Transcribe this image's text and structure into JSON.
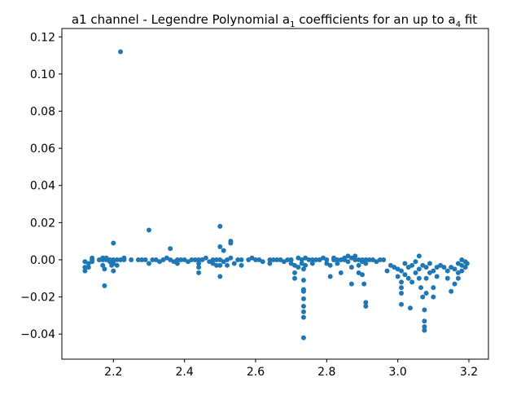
{
  "chart_data": {
    "type": "scatter",
    "title": {
      "prefix": "a1 channel - Legendre Polynomial a",
      "sub1": "1",
      "middle": " coefficients for an up to a",
      "sub2": "4",
      "suffix": " fit"
    },
    "xlabel": "",
    "ylabel": "",
    "xlim": [
      2.055,
      3.255
    ],
    "ylim": [
      -0.0535,
      0.1245
    ],
    "xticks": [
      2.2,
      2.4,
      2.6,
      2.8,
      3.0,
      3.2
    ],
    "xtick_labels": [
      "2.2",
      "2.4",
      "2.6",
      "2.8",
      "3.0",
      "3.2"
    ],
    "yticks": [
      -0.04,
      -0.02,
      0.0,
      0.02,
      0.04,
      0.06,
      0.08,
      0.1,
      0.12
    ],
    "ytick_labels": [
      "−0.04",
      "−0.02",
      "0.00",
      "0.02",
      "0.04",
      "0.06",
      "0.08",
      "0.10",
      "0.12"
    ],
    "grid": false,
    "marker_color": "#1f77b4",
    "series": [
      {
        "points": [
          [
            2.12,
            -0.001
          ],
          [
            2.12,
            -0.004
          ],
          [
            2.12,
            -0.006
          ],
          [
            2.13,
            -0.002
          ],
          [
            2.13,
            -0.004
          ],
          [
            2.14,
            0.0
          ],
          [
            2.14,
            0.001
          ],
          [
            2.14,
            -0.001
          ],
          [
            2.16,
            0.0
          ],
          [
            2.17,
            0.0
          ],
          [
            2.17,
            0.001
          ],
          [
            2.17,
            -0.003
          ],
          [
            2.175,
            -0.005
          ],
          [
            2.175,
            -0.014
          ],
          [
            2.18,
            0.0
          ],
          [
            2.18,
            0.001
          ],
          [
            2.19,
            0.0
          ],
          [
            2.19,
            -0.001
          ],
          [
            2.195,
            -0.003
          ],
          [
            2.2,
            0.0
          ],
          [
            2.2,
            0.009
          ],
          [
            2.2,
            -0.002
          ],
          [
            2.2,
            -0.006
          ],
          [
            2.21,
            0.0
          ],
          [
            2.21,
            -0.003
          ],
          [
            2.22,
            0.112
          ],
          [
            2.22,
            0.0
          ],
          [
            2.23,
            0.0
          ],
          [
            2.23,
            0.001
          ],
          [
            2.25,
            0.0
          ],
          [
            2.27,
            0.0
          ],
          [
            2.28,
            0.0
          ],
          [
            2.29,
            0.0
          ],
          [
            2.3,
            0.016
          ],
          [
            2.3,
            -0.002
          ],
          [
            2.31,
            0.0
          ],
          [
            2.32,
            0.0
          ],
          [
            2.33,
            -0.001
          ],
          [
            2.34,
            0.0
          ],
          [
            2.35,
            0.001
          ],
          [
            2.36,
            0.006
          ],
          [
            2.36,
            0.0
          ],
          [
            2.37,
            -0.001
          ],
          [
            2.38,
            0.0
          ],
          [
            2.38,
            -0.002
          ],
          [
            2.39,
            0.0
          ],
          [
            2.4,
            0.0
          ],
          [
            2.41,
            -0.001
          ],
          [
            2.42,
            0.0
          ],
          [
            2.43,
            0.0
          ],
          [
            2.44,
            0.0
          ],
          [
            2.44,
            -0.002
          ],
          [
            2.44,
            -0.004
          ],
          [
            2.44,
            -0.007
          ],
          [
            2.45,
            0.0
          ],
          [
            2.46,
            0.001
          ],
          [
            2.47,
            -0.001
          ],
          [
            2.48,
            0.0
          ],
          [
            2.48,
            -0.002
          ],
          [
            2.49,
            0.0
          ],
          [
            2.49,
            -0.003
          ],
          [
            2.5,
            0.018
          ],
          [
            2.5,
            0.007
          ],
          [
            2.5,
            0.0
          ],
          [
            2.5,
            -0.003
          ],
          [
            2.5,
            -0.009
          ],
          [
            2.51,
            0.005
          ],
          [
            2.51,
            -0.001
          ],
          [
            2.52,
            0.0
          ],
          [
            2.52,
            -0.003
          ],
          [
            2.53,
            0.009
          ],
          [
            2.53,
            0.01
          ],
          [
            2.53,
            0.001
          ],
          [
            2.54,
            -0.002
          ],
          [
            2.55,
            0.0
          ],
          [
            2.56,
            0.0
          ],
          [
            2.56,
            -0.003
          ],
          [
            2.58,
            0.0
          ],
          [
            2.59,
            0.001
          ],
          [
            2.6,
            0.0
          ],
          [
            2.61,
            0.0
          ],
          [
            2.62,
            -0.001
          ],
          [
            2.64,
            0.0
          ],
          [
            2.64,
            -0.002
          ],
          [
            2.65,
            0.0
          ],
          [
            2.66,
            0.0
          ],
          [
            2.67,
            0.0
          ],
          [
            2.68,
            -0.001
          ],
          [
            2.69,
            0.0
          ],
          [
            2.7,
            0.0
          ],
          [
            2.7,
            -0.002
          ],
          [
            2.71,
            -0.003
          ],
          [
            2.71,
            -0.007
          ],
          [
            2.71,
            -0.01
          ],
          [
            2.72,
            0.001
          ],
          [
            2.72,
            -0.004
          ],
          [
            2.73,
            0.0
          ],
          [
            2.73,
            -0.002
          ],
          [
            2.735,
            -0.005
          ],
          [
            2.735,
            -0.011
          ],
          [
            2.735,
            -0.016
          ],
          [
            2.735,
            -0.017
          ],
          [
            2.735,
            -0.021
          ],
          [
            2.735,
            -0.025
          ],
          [
            2.735,
            -0.028
          ],
          [
            2.735,
            -0.031
          ],
          [
            2.735,
            -0.042
          ],
          [
            2.74,
            0.001
          ],
          [
            2.74,
            -0.003
          ],
          [
            2.75,
            0.0
          ],
          [
            2.76,
            0.0
          ],
          [
            2.76,
            -0.002
          ],
          [
            2.77,
            0.0
          ],
          [
            2.78,
            0.0
          ],
          [
            2.79,
            0.001
          ],
          [
            2.8,
            0.0
          ],
          [
            2.8,
            -0.002
          ],
          [
            2.81,
            -0.003
          ],
          [
            2.81,
            -0.009
          ],
          [
            2.82,
            0.001
          ],
          [
            2.82,
            0.0
          ],
          [
            2.83,
            0.0
          ],
          [
            2.83,
            -0.002
          ],
          [
            2.84,
            0.0
          ],
          [
            2.84,
            -0.007
          ],
          [
            2.85,
            0.001
          ],
          [
            2.85,
            0.0
          ],
          [
            2.86,
            0.002
          ],
          [
            2.86,
            -0.001
          ],
          [
            2.87,
            0.001
          ],
          [
            2.87,
            -0.004
          ],
          [
            2.87,
            -0.013
          ],
          [
            2.88,
            0.0
          ],
          [
            2.88,
            0.002
          ],
          [
            2.89,
            0.0
          ],
          [
            2.89,
            -0.003
          ],
          [
            2.89,
            -0.007
          ],
          [
            2.9,
            0.0
          ],
          [
            2.9,
            -0.001
          ],
          [
            2.9,
            -0.008
          ],
          [
            2.905,
            -0.013
          ],
          [
            2.91,
            0.0
          ],
          [
            2.91,
            -0.002
          ],
          [
            2.91,
            -0.023
          ],
          [
            2.91,
            -0.025
          ],
          [
            2.92,
            0.0
          ],
          [
            2.93,
            0.0
          ],
          [
            2.94,
            -0.001
          ],
          [
            2.95,
            0.0
          ],
          [
            2.96,
            0.0
          ],
          [
            2.97,
            -0.006
          ],
          [
            2.98,
            -0.003
          ],
          [
            2.99,
            -0.004
          ],
          [
            3.0,
            -0.005
          ],
          [
            3.0,
            -0.009
          ],
          [
            3.01,
            -0.006
          ],
          [
            3.01,
            -0.012
          ],
          [
            3.01,
            -0.015
          ],
          [
            3.01,
            -0.018
          ],
          [
            3.01,
            -0.024
          ],
          [
            3.02,
            -0.002
          ],
          [
            3.02,
            -0.008
          ],
          [
            3.03,
            -0.004
          ],
          [
            3.03,
            -0.01
          ],
          [
            3.035,
            -0.026
          ],
          [
            3.04,
            -0.003
          ],
          [
            3.04,
            -0.012
          ],
          [
            3.05,
            -0.001
          ],
          [
            3.05,
            -0.007
          ],
          [
            3.06,
            0.002
          ],
          [
            3.06,
            -0.005
          ],
          [
            3.06,
            -0.01
          ],
          [
            3.065,
            -0.015
          ],
          [
            3.07,
            -0.02
          ],
          [
            3.07,
            -0.003
          ],
          [
            3.075,
            -0.027
          ],
          [
            3.075,
            -0.033
          ],
          [
            3.075,
            -0.036
          ],
          [
            3.075,
            -0.038
          ],
          [
            3.08,
            -0.004
          ],
          [
            3.08,
            -0.01
          ],
          [
            3.08,
            -0.018
          ],
          [
            3.09,
            -0.002
          ],
          [
            3.09,
            -0.007
          ],
          [
            3.1,
            -0.006
          ],
          [
            3.1,
            -0.015
          ],
          [
            3.1,
            -0.02
          ],
          [
            3.11,
            -0.004
          ],
          [
            3.11,
            -0.009
          ],
          [
            3.12,
            -0.003
          ],
          [
            3.13,
            -0.004
          ],
          [
            3.14,
            -0.006
          ],
          [
            3.14,
            -0.01
          ],
          [
            3.15,
            -0.004
          ],
          [
            3.15,
            -0.017
          ],
          [
            3.16,
            -0.005
          ],
          [
            3.16,
            -0.013
          ],
          [
            3.17,
            -0.002
          ],
          [
            3.17,
            -0.007
          ],
          [
            3.17,
            -0.01
          ],
          [
            3.18,
            0.0
          ],
          [
            3.18,
            -0.003
          ],
          [
            3.18,
            -0.006
          ],
          [
            3.19,
            -0.001
          ],
          [
            3.19,
            -0.004
          ],
          [
            3.195,
            -0.002
          ]
        ]
      }
    ]
  }
}
